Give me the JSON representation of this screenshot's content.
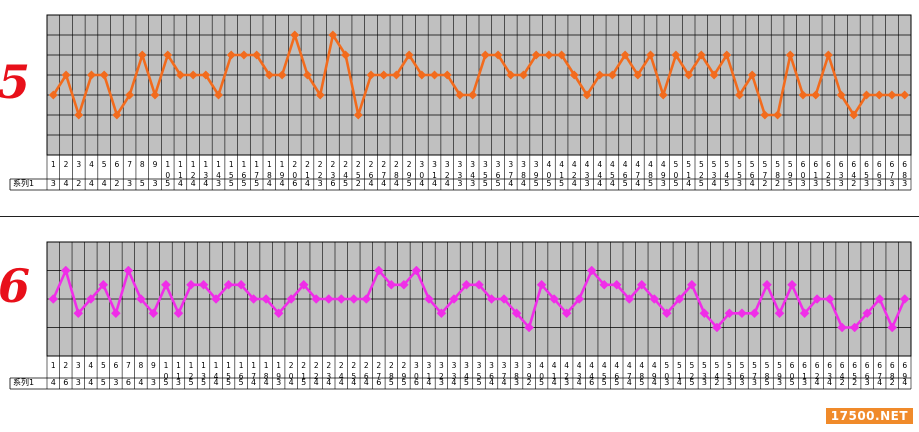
{
  "chart_data": [
    {
      "type": "line",
      "annotation": "5",
      "ylim": [
        0,
        7
      ],
      "yticks": [
        0,
        1,
        2,
        3,
        4,
        5,
        6,
        7
      ],
      "categories": [
        "1",
        "2",
        "3",
        "4",
        "5",
        "6",
        "7",
        "8",
        "9",
        "10",
        "11",
        "12",
        "13",
        "14",
        "15",
        "16",
        "17",
        "18",
        "19",
        "20",
        "21",
        "22",
        "23",
        "24",
        "25",
        "26",
        "27",
        "28",
        "29",
        "30",
        "31",
        "32",
        "33",
        "34",
        "35",
        "36",
        "37",
        "38",
        "39",
        "40",
        "41",
        "42",
        "43",
        "44",
        "45",
        "46",
        "47",
        "48",
        "49",
        "50",
        "51",
        "52",
        "53",
        "54",
        "55",
        "56",
        "57",
        "58",
        "59",
        "60",
        "61",
        "62",
        "63",
        "64",
        "65",
        "66",
        "67",
        "68"
      ],
      "series": [
        {
          "name": "系列1",
          "color": "#f26b1d",
          "values": [
            3,
            4,
            2,
            4,
            4,
            2,
            3,
            5,
            3,
            5,
            4,
            4,
            4,
            3,
            5,
            5,
            5,
            4,
            4,
            6,
            4,
            3,
            6,
            5,
            2,
            4,
            4,
            4,
            5,
            4,
            4,
            4,
            3,
            3,
            5,
            5,
            4,
            4,
            5,
            5,
            5,
            4,
            3,
            4,
            4,
            5,
            4,
            5,
            3,
            5,
            4,
            5,
            4,
            5,
            3,
            4,
            2,
            2,
            5,
            3,
            3,
            5,
            3,
            2,
            3,
            3,
            3,
            3
          ]
        }
      ],
      "grid": true
    },
    {
      "type": "line",
      "annotation": "6",
      "ylim": [
        0,
        8
      ],
      "yticks": [
        0,
        2,
        4,
        6,
        8
      ],
      "categories": [
        "1",
        "2",
        "3",
        "4",
        "5",
        "6",
        "7",
        "8",
        "9",
        "10",
        "11",
        "12",
        "13",
        "14",
        "15",
        "16",
        "17",
        "18",
        "19",
        "20",
        "21",
        "22",
        "23",
        "24",
        "25",
        "26",
        "27",
        "28",
        "29",
        "30",
        "31",
        "32",
        "33",
        "34",
        "35",
        "36",
        "37",
        "38",
        "39",
        "40",
        "41",
        "42",
        "43",
        "44",
        "45",
        "46",
        "47",
        "48",
        "49",
        "50",
        "51",
        "52",
        "53",
        "54",
        "55",
        "56",
        "57",
        "58",
        "59",
        "60",
        "61",
        "62",
        "63",
        "64",
        "65",
        "66",
        "67",
        "68",
        "69"
      ],
      "series": [
        {
          "name": "系列1",
          "color": "#f02de8",
          "values": [
            4,
            6,
            3,
            4,
            5,
            3,
            6,
            4,
            3,
            5,
            3,
            5,
            5,
            4,
            5,
            5,
            4,
            4,
            3,
            4,
            5,
            4,
            4,
            4,
            4,
            4,
            6,
            5,
            5,
            6,
            4,
            3,
            4,
            5,
            5,
            4,
            4,
            3,
            2,
            5,
            4,
            3,
            4,
            6,
            5,
            5,
            4,
            5,
            4,
            3,
            4,
            5,
            3,
            2,
            3,
            3,
            3,
            5,
            3,
            5,
            3,
            4,
            4,
            2,
            2,
            3,
            4,
            2,
            4
          ]
        }
      ],
      "grid": true
    }
  ],
  "watermark": "17500.NET"
}
